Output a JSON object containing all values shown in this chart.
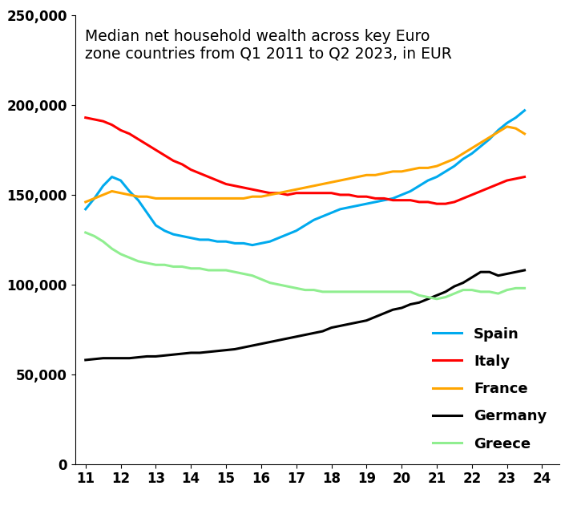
{
  "title": "Median net household wealth across key Euro\nzone countries from Q1 2011 to Q2 2023, in EUR",
  "title_fontsize": 13.5,
  "x_ticks": [
    11,
    12,
    13,
    14,
    15,
    16,
    17,
    18,
    19,
    20,
    21,
    22,
    23,
    24
  ],
  "ylim": [
    0,
    250000
  ],
  "y_ticks": [
    0,
    50000,
    100000,
    150000,
    200000,
    250000
  ],
  "series": {
    "Spain": {
      "color": "#00AAEE",
      "x": [
        11,
        11.25,
        11.5,
        11.75,
        12,
        12.25,
        12.5,
        12.75,
        13,
        13.25,
        13.5,
        13.75,
        14,
        14.25,
        14.5,
        14.75,
        15,
        15.25,
        15.5,
        15.75,
        16,
        16.25,
        16.5,
        16.75,
        17,
        17.25,
        17.5,
        17.75,
        18,
        18.25,
        18.5,
        18.75,
        19,
        19.25,
        19.5,
        19.75,
        20,
        20.25,
        20.5,
        20.75,
        21,
        21.25,
        21.5,
        21.75,
        22,
        22.25,
        22.5,
        22.75,
        23,
        23.25,
        23.5
      ],
      "y": [
        142000,
        148000,
        155000,
        160000,
        158000,
        152000,
        147000,
        140000,
        133000,
        130000,
        128000,
        127000,
        126000,
        125000,
        125000,
        124000,
        124000,
        123000,
        123000,
        122000,
        123000,
        124000,
        126000,
        128000,
        130000,
        133000,
        136000,
        138000,
        140000,
        142000,
        143000,
        144000,
        145000,
        146000,
        147000,
        148000,
        150000,
        152000,
        155000,
        158000,
        160000,
        163000,
        166000,
        170000,
        173000,
        177000,
        181000,
        186000,
        190000,
        193000,
        197000
      ]
    },
    "Italy": {
      "color": "#FF0000",
      "x": [
        11,
        11.25,
        11.5,
        11.75,
        12,
        12.25,
        12.5,
        12.75,
        13,
        13.25,
        13.5,
        13.75,
        14,
        14.25,
        14.5,
        14.75,
        15,
        15.25,
        15.5,
        15.75,
        16,
        16.25,
        16.5,
        16.75,
        17,
        17.25,
        17.5,
        17.75,
        18,
        18.25,
        18.5,
        18.75,
        19,
        19.25,
        19.5,
        19.75,
        20,
        20.25,
        20.5,
        20.75,
        21,
        21.25,
        21.5,
        21.75,
        22,
        22.25,
        22.5,
        22.75,
        23,
        23.25,
        23.5
      ],
      "y": [
        193000,
        192000,
        191000,
        189000,
        186000,
        184000,
        181000,
        178000,
        175000,
        172000,
        169000,
        167000,
        164000,
        162000,
        160000,
        158000,
        156000,
        155000,
        154000,
        153000,
        152000,
        151000,
        151000,
        150000,
        151000,
        151000,
        151000,
        151000,
        151000,
        150000,
        150000,
        149000,
        149000,
        148000,
        148000,
        147000,
        147000,
        147000,
        146000,
        146000,
        145000,
        145000,
        146000,
        148000,
        150000,
        152000,
        154000,
        156000,
        158000,
        159000,
        160000
      ]
    },
    "France": {
      "color": "#FFA500",
      "x": [
        11,
        11.25,
        11.5,
        11.75,
        12,
        12.25,
        12.5,
        12.75,
        13,
        13.25,
        13.5,
        13.75,
        14,
        14.25,
        14.5,
        14.75,
        15,
        15.25,
        15.5,
        15.75,
        16,
        16.25,
        16.5,
        16.75,
        17,
        17.25,
        17.5,
        17.75,
        18,
        18.25,
        18.5,
        18.75,
        19,
        19.25,
        19.5,
        19.75,
        20,
        20.25,
        20.5,
        20.75,
        21,
        21.25,
        21.5,
        21.75,
        22,
        22.25,
        22.5,
        22.75,
        23,
        23.25,
        23.5
      ],
      "y": [
        146000,
        148000,
        150000,
        152000,
        151000,
        150000,
        149000,
        149000,
        148000,
        148000,
        148000,
        148000,
        148000,
        148000,
        148000,
        148000,
        148000,
        148000,
        148000,
        149000,
        149000,
        150000,
        151000,
        152000,
        153000,
        154000,
        155000,
        156000,
        157000,
        158000,
        159000,
        160000,
        161000,
        161000,
        162000,
        163000,
        163000,
        164000,
        165000,
        165000,
        166000,
        168000,
        170000,
        173000,
        176000,
        179000,
        182000,
        185000,
        188000,
        187000,
        184000
      ]
    },
    "Germany": {
      "color": "#000000",
      "x": [
        11,
        11.25,
        11.5,
        11.75,
        12,
        12.25,
        12.5,
        12.75,
        13,
        13.25,
        13.5,
        13.75,
        14,
        14.25,
        14.5,
        14.75,
        15,
        15.25,
        15.5,
        15.75,
        16,
        16.25,
        16.5,
        16.75,
        17,
        17.25,
        17.5,
        17.75,
        18,
        18.25,
        18.5,
        18.75,
        19,
        19.25,
        19.5,
        19.75,
        20,
        20.25,
        20.5,
        20.75,
        21,
        21.25,
        21.5,
        21.75,
        22,
        22.25,
        22.5,
        22.75,
        23,
        23.25,
        23.5
      ],
      "y": [
        58000,
        58500,
        59000,
        59000,
        59000,
        59000,
        59500,
        60000,
        60000,
        60500,
        61000,
        61500,
        62000,
        62000,
        62500,
        63000,
        63500,
        64000,
        65000,
        66000,
        67000,
        68000,
        69000,
        70000,
        71000,
        72000,
        73000,
        74000,
        76000,
        77000,
        78000,
        79000,
        80000,
        82000,
        84000,
        86000,
        87000,
        89000,
        90000,
        92000,
        94000,
        96000,
        99000,
        101000,
        104000,
        107000,
        107000,
        105000,
        106000,
        107000,
        108000
      ]
    },
    "Greece": {
      "color": "#90EE90",
      "x": [
        11,
        11.25,
        11.5,
        11.75,
        12,
        12.25,
        12.5,
        12.75,
        13,
        13.25,
        13.5,
        13.75,
        14,
        14.25,
        14.5,
        14.75,
        15,
        15.25,
        15.5,
        15.75,
        16,
        16.25,
        16.5,
        16.75,
        17,
        17.25,
        17.5,
        17.75,
        18,
        18.25,
        18.5,
        18.75,
        19,
        19.25,
        19.5,
        19.75,
        20,
        20.25,
        20.5,
        20.75,
        21,
        21.25,
        21.5,
        21.75,
        22,
        22.25,
        22.5,
        22.75,
        23,
        23.25,
        23.5
      ],
      "y": [
        129000,
        127000,
        124000,
        120000,
        117000,
        115000,
        113000,
        112000,
        111000,
        111000,
        110000,
        110000,
        109000,
        109000,
        108000,
        108000,
        108000,
        107000,
        106000,
        105000,
        103000,
        101000,
        100000,
        99000,
        98000,
        97000,
        97000,
        96000,
        96000,
        96000,
        96000,
        96000,
        96000,
        96000,
        96000,
        96000,
        96000,
        96000,
        94000,
        93000,
        92000,
        93000,
        95000,
        97000,
        97000,
        96000,
        96000,
        95000,
        97000,
        98000,
        98000
      ]
    }
  },
  "linewidth": 2.2,
  "background_color": "#FFFFFF",
  "legend_fontsize": 13,
  "legend_labelspacing": 0.9,
  "tick_fontsize": 12
}
